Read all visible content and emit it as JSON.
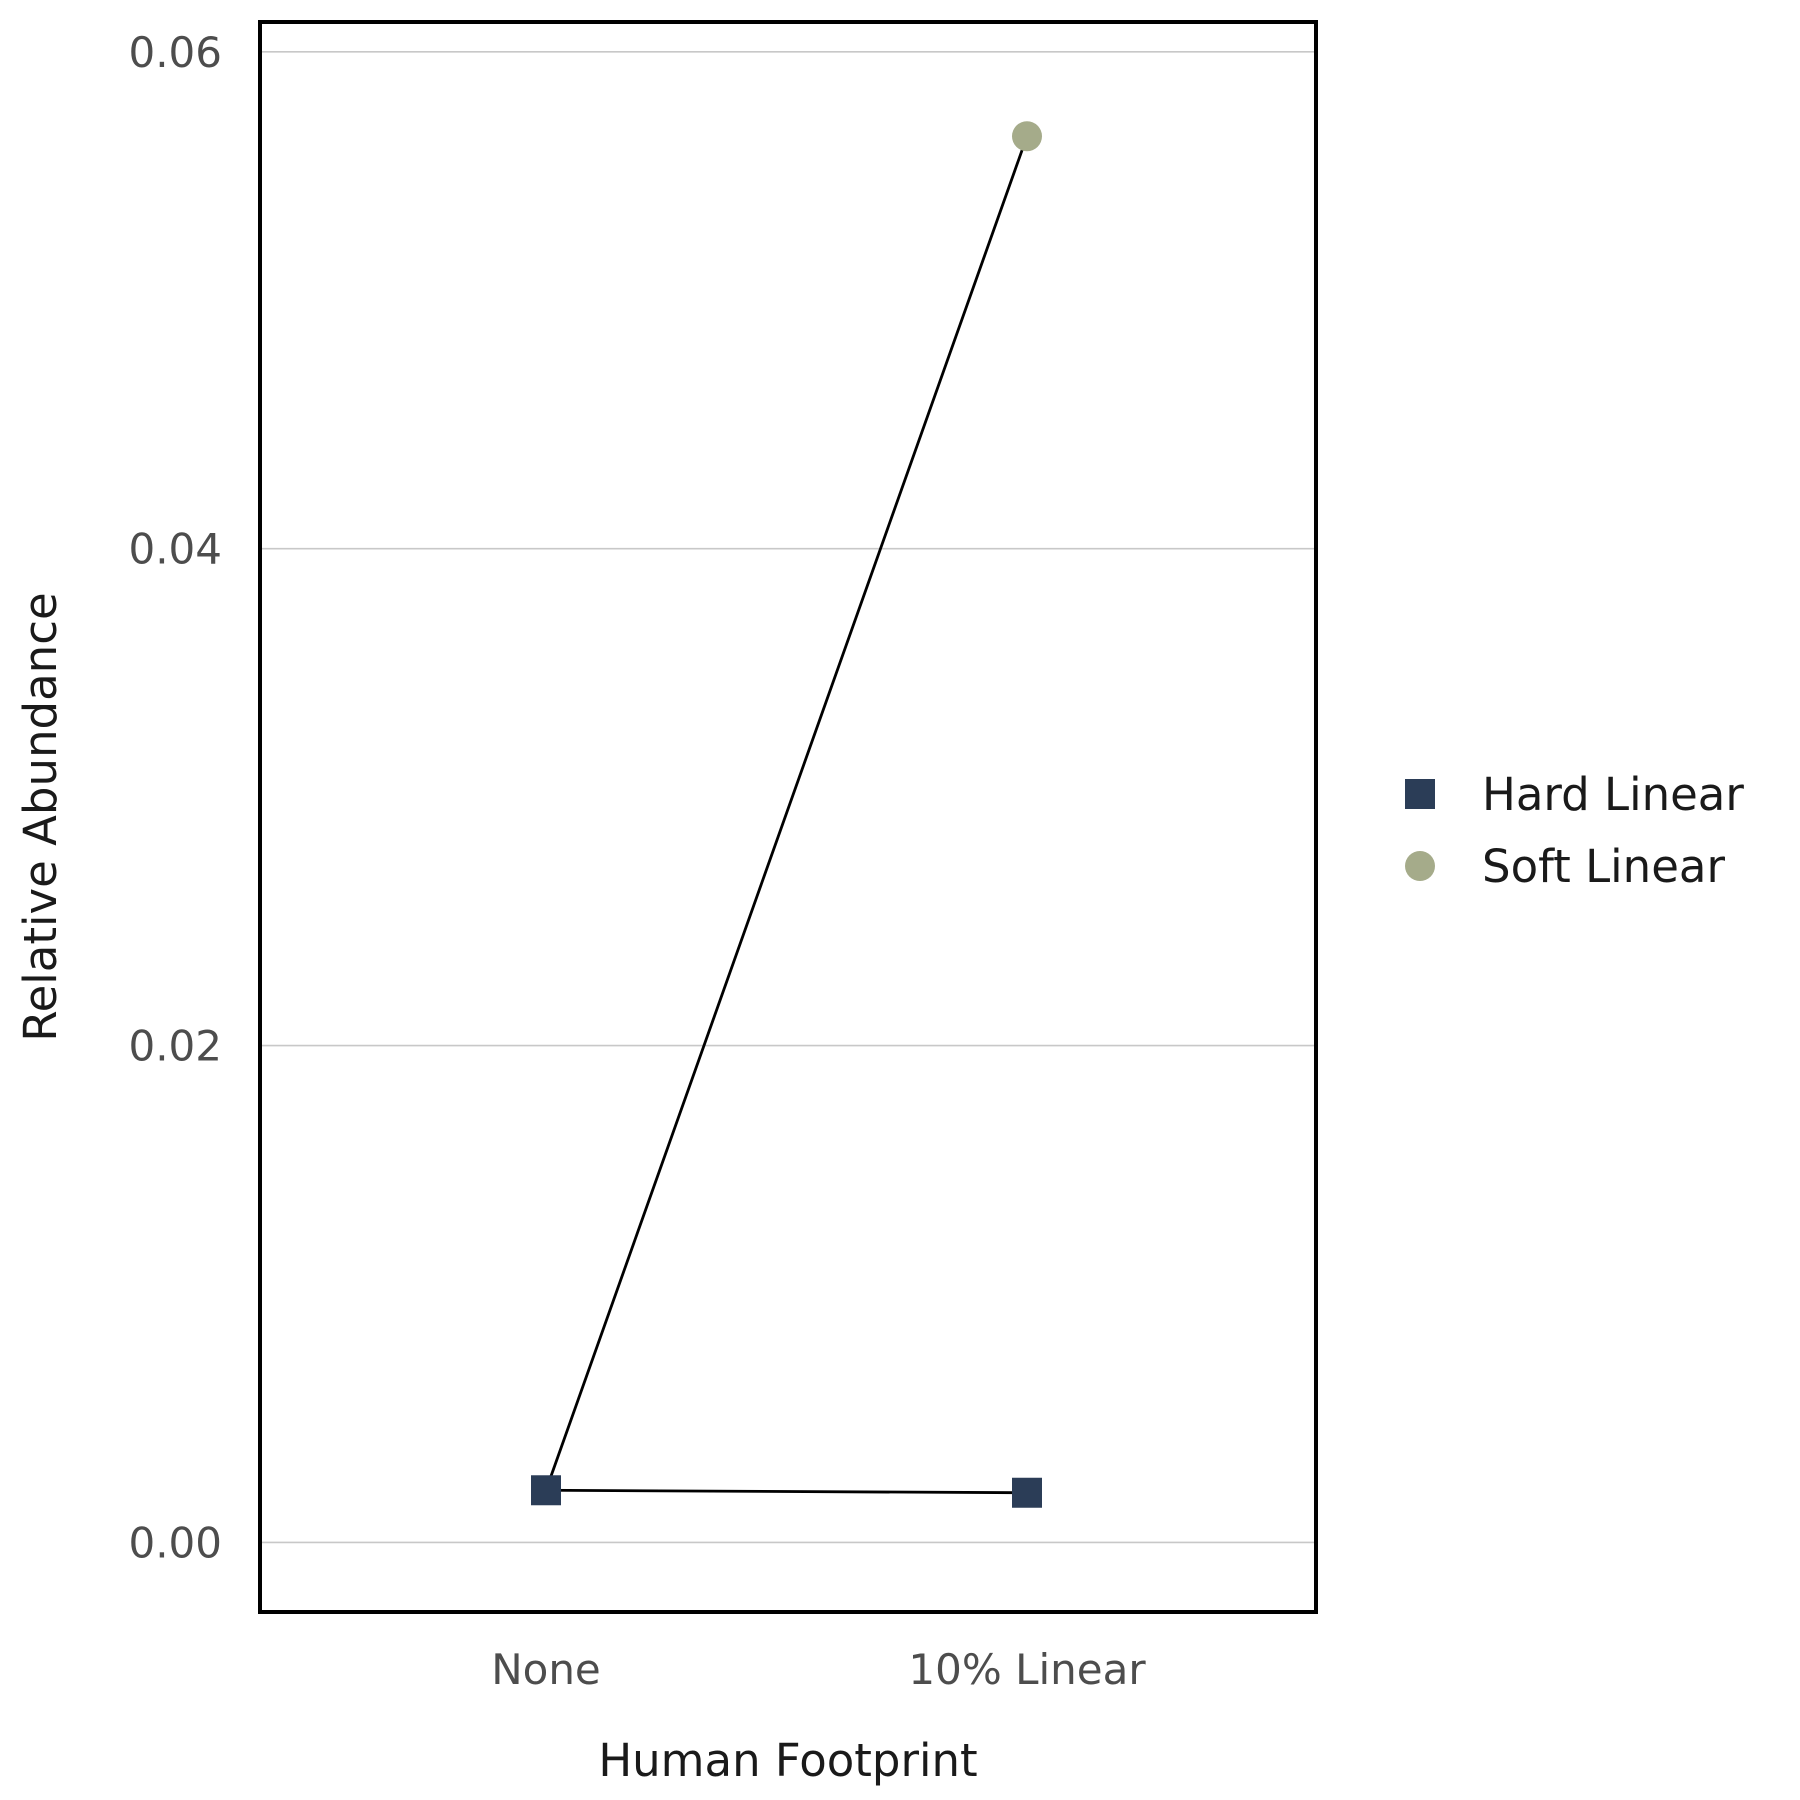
{
  "chart_data": {
    "type": "scatter",
    "title": "",
    "xlabel": "Human Footprint",
    "ylabel": "Relative Abundance",
    "categories": [
      "None",
      "10% Linear"
    ],
    "ylim": [
      -0.0028,
      0.0612
    ],
    "yticks": [
      0.0,
      0.02,
      0.04,
      0.06
    ],
    "ytick_labels": [
      "0.00",
      "0.02",
      "0.04",
      "0.06"
    ],
    "grid": "horizontal",
    "legend_position": "right",
    "series": [
      {
        "name": "Hard Linear",
        "marker": "square",
        "color": "#2b3d57",
        "points": [
          {
            "category": "None",
            "value": 0.0021
          },
          {
            "category": "10% Linear",
            "value": 0.002
          }
        ]
      },
      {
        "name": "Soft Linear",
        "marker": "circle",
        "color": "#a5ab8a",
        "points": [
          {
            "category": "10% Linear",
            "value": 0.0566
          }
        ]
      }
    ],
    "connectors": [
      {
        "from": {
          "category": "None",
          "value": 0.0021
        },
        "to": {
          "category": "10% Linear",
          "value": 0.002
        }
      },
      {
        "from": {
          "category": "None",
          "value": 0.0021
        },
        "to": {
          "category": "10% Linear",
          "value": 0.0566
        }
      }
    ]
  }
}
